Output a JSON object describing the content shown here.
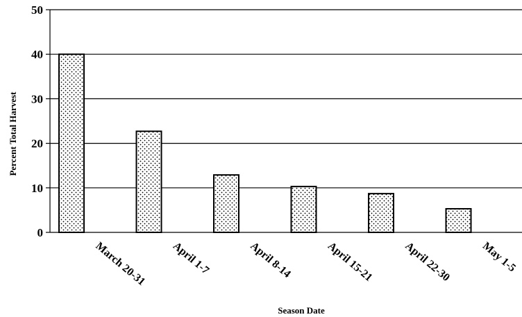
{
  "chart_data": {
    "type": "bar",
    "title": "",
    "xlabel": "Season Date",
    "ylabel": "Percent Total Harvest",
    "categories": [
      "March 20-31",
      "April 1-7",
      "April 8-14",
      "April 15-21",
      "April 22-30",
      "May 1-5"
    ],
    "values": [
      40,
      22.7,
      12.9,
      10.3,
      8.7,
      5.3
    ],
    "ylim": [
      0,
      50
    ],
    "yticks": [
      0,
      10,
      20,
      30,
      40,
      50
    ],
    "grid": true,
    "legend": "none",
    "bar_pattern": "dotted",
    "colors": {
      "bar_fill": "#ffffff",
      "bar_dots": "#000000",
      "bar_stroke": "#000000",
      "grid": "#000000"
    }
  }
}
